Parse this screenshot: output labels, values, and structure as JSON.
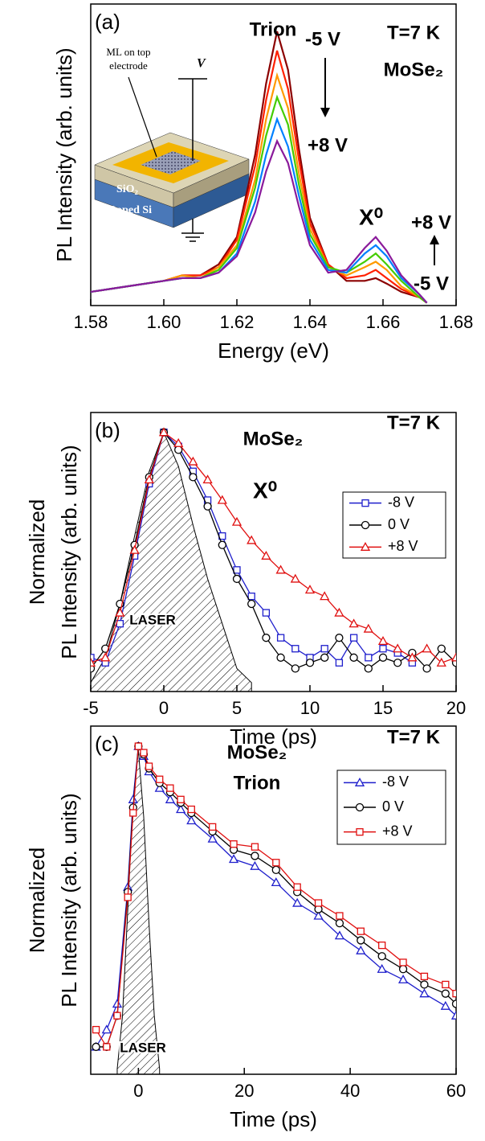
{
  "chart_data": [
    {
      "type": "line",
      "panel": "(a)",
      "xlabel": "Energy (eV)",
      "ylabel": "PL Intensity (arb. units)",
      "xlim": [
        1.58,
        1.68
      ],
      "ylim": [
        0,
        1.1
      ],
      "xticks": [
        1.58,
        {
          "value": 1.6,
          "label": "1.60"
        },
        1.62,
        1.64,
        1.66,
        1.68
      ],
      "x": [
        1.58,
        1.59,
        1.6,
        1.605,
        1.61,
        1.615,
        1.62,
        1.625,
        1.628,
        1.631,
        1.634,
        1.637,
        1.64,
        1.645,
        1.65,
        1.655,
        1.658,
        1.661,
        1.665,
        1.67,
        1.672
      ],
      "series": [
        {
          "color": "#8b0000",
          "values": [
            0.05,
            0.07,
            0.09,
            0.11,
            0.11,
            0.15,
            0.25,
            0.55,
            0.81,
            1.0,
            0.86,
            0.57,
            0.32,
            0.15,
            0.09,
            0.09,
            0.1,
            0.08,
            0.05,
            0.03,
            0.01
          ]
        },
        {
          "color": "#ff2000",
          "values": [
            0.05,
            0.07,
            0.09,
            0.11,
            0.11,
            0.14,
            0.24,
            0.51,
            0.75,
            0.93,
            0.79,
            0.53,
            0.3,
            0.15,
            0.1,
            0.11,
            0.13,
            0.1,
            0.06,
            0.03,
            0.01
          ]
        },
        {
          "color": "#ff9900",
          "values": [
            0.05,
            0.07,
            0.09,
            0.11,
            0.1,
            0.14,
            0.22,
            0.46,
            0.68,
            0.84,
            0.72,
            0.48,
            0.28,
            0.14,
            0.11,
            0.14,
            0.16,
            0.13,
            0.07,
            0.03,
            0.01
          ]
        },
        {
          "color": "#44cc00",
          "values": [
            0.05,
            0.07,
            0.09,
            0.1,
            0.1,
            0.13,
            0.21,
            0.43,
            0.62,
            0.76,
            0.66,
            0.44,
            0.26,
            0.14,
            0.12,
            0.16,
            0.19,
            0.15,
            0.09,
            0.03,
            0.01
          ]
        },
        {
          "color": "#0080ff",
          "values": [
            0.05,
            0.07,
            0.09,
            0.1,
            0.1,
            0.12,
            0.19,
            0.38,
            0.55,
            0.68,
            0.58,
            0.4,
            0.24,
            0.13,
            0.12,
            0.19,
            0.22,
            0.18,
            0.1,
            0.04,
            0.01
          ]
        },
        {
          "color": "#8a1a9b",
          "values": [
            0.05,
            0.07,
            0.09,
            0.1,
            0.1,
            0.12,
            0.18,
            0.34,
            0.49,
            0.6,
            0.52,
            0.36,
            0.22,
            0.12,
            0.13,
            0.21,
            0.25,
            0.2,
            0.11,
            0.04,
            0.01
          ]
        }
      ],
      "annotations": [
        {
          "text": "Trion",
          "color": "#000000"
        },
        {
          "text": "-5 V",
          "color": "#8b0000"
        },
        {
          "text": "+8 V",
          "color": "#8a1a9b"
        },
        {
          "text": "T=7 K",
          "color": "#000000"
        },
        {
          "text": "MoSe₂",
          "color": "#000000"
        },
        {
          "text": "X⁰",
          "color": "#000000"
        },
        {
          "text": "+8 V",
          "color": "#8a1a9b"
        },
        {
          "text": "-5 V",
          "color": "#8b0000"
        }
      ],
      "inset": [
        "ML on top",
        "electrode",
        "V",
        "SiO₂",
        "Doped Si"
      ]
    },
    {
      "type": "scatter-line",
      "panel": "(b)",
      "xlabel": "Time (ps)",
      "ylabel": [
        "Normalized",
        "PL Intensity (arb. units)"
      ],
      "log_y": true,
      "xlim": [
        -5,
        20
      ],
      "ylim": [
        0.005,
        1.5
      ],
      "xticks": [
        -5,
        0,
        5,
        10,
        15,
        20
      ],
      "legend": "upper right",
      "x": [
        -5,
        -4,
        -3,
        -2,
        -1,
        0,
        1,
        2,
        3,
        4,
        5,
        6,
        7,
        8,
        9,
        10,
        11,
        12,
        13,
        14,
        15,
        16,
        17,
        18,
        19,
        20
      ],
      "series": [
        {
          "name": "-8 V",
          "color": "#1f1fcc",
          "marker": "square",
          "values": [
            0.01,
            0.009,
            0.02,
            0.08,
            0.35,
            1.0,
            0.75,
            0.45,
            0.25,
            0.12,
            0.06,
            0.035,
            0.025,
            0.015,
            0.012,
            0.01,
            0.012,
            0.009,
            0.015,
            0.01,
            0.012,
            0.011,
            0.009,
            null,
            null,
            null
          ]
        },
        {
          "name": "0 V",
          "color": "#000000",
          "marker": "circle",
          "values": [
            0.008,
            0.012,
            0.03,
            0.1,
            0.4,
            1.0,
            0.7,
            0.4,
            0.22,
            0.1,
            0.05,
            0.03,
            0.015,
            0.01,
            0.008,
            0.009,
            0.01,
            0.015,
            0.01,
            0.008,
            0.01,
            0.009,
            0.011,
            0.008,
            0.012,
            0.009
          ]
        },
        {
          "name": "+8 V",
          "color": "#e01010",
          "marker": "triangle",
          "values": [
            0.009,
            0.01,
            0.025,
            0.09,
            0.38,
            1.0,
            0.8,
            0.55,
            0.38,
            0.25,
            0.16,
            0.11,
            0.08,
            0.06,
            0.05,
            0.04,
            0.035,
            0.025,
            0.02,
            0.018,
            0.014,
            0.012,
            0.01,
            0.012,
            0.009,
            0.01
          ]
        }
      ],
      "laser": {
        "label": "LASER",
        "x": [
          -5,
          -4,
          -3,
          -2,
          -1,
          0,
          1,
          2,
          3,
          4,
          5,
          6
        ],
        "values": [
          0.006,
          0.01,
          0.03,
          0.12,
          0.45,
          1.0,
          0.5,
          0.15,
          0.05,
          0.02,
          0.008,
          0.006
        ]
      },
      "annotations": [
        {
          "text": "T=7 K",
          "color": "#000000"
        },
        {
          "text": "MoSe₂",
          "color": "#000000"
        },
        {
          "text": "X⁰",
          "color": "#000000"
        }
      ]
    },
    {
      "type": "scatter-line",
      "panel": "(c)",
      "xlabel": "Time (ps)",
      "ylabel": [
        "Normalized",
        "PL Intensity (arb. units)"
      ],
      "log_y": true,
      "xlim": [
        -9,
        60
      ],
      "ylim": [
        0.014,
        1.3
      ],
      "xticks": [
        0,
        20,
        40,
        60
      ],
      "legend": "upper right",
      "x": [
        -8,
        -6,
        -4,
        -2,
        -1,
        0,
        1,
        2,
        4,
        6,
        8,
        10,
        14,
        18,
        22,
        26,
        30,
        34,
        38,
        42,
        46,
        50,
        54,
        58,
        60
      ],
      "series": [
        {
          "name": "-8 V",
          "color": "#1f1fcc",
          "marker": "triangle",
          "values": [
            0.02,
            0.025,
            0.035,
            0.16,
            0.5,
            1.0,
            0.88,
            0.72,
            0.58,
            0.5,
            0.44,
            0.38,
            0.3,
            0.23,
            0.21,
            0.17,
            0.13,
            0.11,
            0.085,
            0.07,
            0.055,
            0.048,
            0.04,
            0.034,
            0.03
          ]
        },
        {
          "name": "0 V",
          "color": "#000000",
          "marker": "circle",
          "values": [
            0.02,
            0.02,
            0.03,
            0.15,
            0.45,
            1.0,
            0.9,
            0.75,
            0.62,
            0.55,
            0.48,
            0.42,
            0.33,
            0.26,
            0.24,
            0.2,
            0.15,
            0.12,
            0.1,
            0.08,
            0.065,
            0.055,
            0.045,
            0.04,
            0.035
          ]
        },
        {
          "name": "+8 V",
          "color": "#e01010",
          "marker": "square",
          "values": [
            0.025,
            0.02,
            0.03,
            0.14,
            0.42,
            1.0,
            0.92,
            0.77,
            0.65,
            0.58,
            0.5,
            0.44,
            0.35,
            0.28,
            0.27,
            0.22,
            0.16,
            0.13,
            0.11,
            0.09,
            0.075,
            0.06,
            0.05,
            0.045,
            0.04
          ]
        }
      ],
      "laser": {
        "label": "LASER",
        "x": [
          -4,
          -3,
          -2,
          -1,
          0,
          1,
          2,
          3,
          4
        ],
        "values": [
          0.015,
          0.03,
          0.12,
          0.5,
          0.95,
          0.4,
          0.1,
          0.03,
          0.015
        ]
      },
      "annotations": [
        {
          "text": "T=7 K",
          "color": "#000000"
        },
        {
          "text": "MoSe₂",
          "color": "#000000"
        },
        {
          "text": "Trion",
          "color": "#000000"
        }
      ]
    }
  ]
}
